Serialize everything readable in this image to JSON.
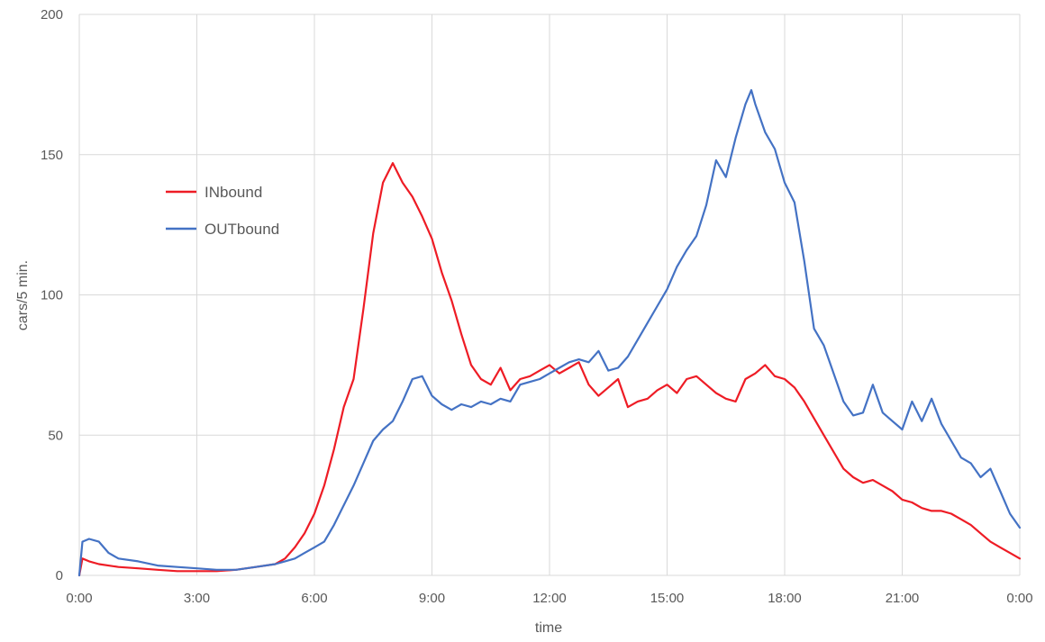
{
  "chart_data": {
    "type": "line",
    "title": "",
    "xlabel": "time",
    "ylabel": "cars/5 min.",
    "xlim": [
      0,
      24
    ],
    "ylim": [
      0,
      200
    ],
    "x_ticks": [
      0,
      3,
      6,
      9,
      12,
      15,
      18,
      21,
      24
    ],
    "x_tick_labels": [
      "0:00",
      "3:00",
      "6:00",
      "9:00",
      "12:00",
      "15:00",
      "18:00",
      "21:00",
      "0:00"
    ],
    "y_ticks": [
      0,
      50,
      100,
      150,
      200
    ],
    "y_tick_labels": [
      "0",
      "50",
      "100",
      "150",
      "200"
    ],
    "grid": true,
    "legend_position": "upper-left",
    "series": [
      {
        "name": "INbound",
        "color": "#ee1c25",
        "points": [
          [
            0.0,
            0
          ],
          [
            0.08,
            6
          ],
          [
            0.25,
            5
          ],
          [
            0.5,
            4
          ],
          [
            1.0,
            3
          ],
          [
            1.5,
            2.5
          ],
          [
            2.0,
            2
          ],
          [
            2.5,
            1.5
          ],
          [
            3.0,
            1.5
          ],
          [
            3.5,
            1.5
          ],
          [
            4.0,
            2
          ],
          [
            4.5,
            3
          ],
          [
            5.0,
            4
          ],
          [
            5.25,
            6
          ],
          [
            5.5,
            10
          ],
          [
            5.75,
            15
          ],
          [
            6.0,
            22
          ],
          [
            6.25,
            32
          ],
          [
            6.5,
            45
          ],
          [
            6.75,
            60
          ],
          [
            7.0,
            70
          ],
          [
            7.25,
            95
          ],
          [
            7.5,
            122
          ],
          [
            7.75,
            140
          ],
          [
            8.0,
            147
          ],
          [
            8.25,
            140
          ],
          [
            8.5,
            135
          ],
          [
            8.75,
            128
          ],
          [
            9.0,
            120
          ],
          [
            9.25,
            108
          ],
          [
            9.5,
            98
          ],
          [
            9.75,
            86
          ],
          [
            10.0,
            75
          ],
          [
            10.25,
            70
          ],
          [
            10.5,
            68
          ],
          [
            10.75,
            74
          ],
          [
            11.0,
            66
          ],
          [
            11.25,
            70
          ],
          [
            11.5,
            71
          ],
          [
            11.75,
            73
          ],
          [
            12.0,
            75
          ],
          [
            12.25,
            72
          ],
          [
            12.5,
            74
          ],
          [
            12.75,
            76
          ],
          [
            13.0,
            68
          ],
          [
            13.25,
            64
          ],
          [
            13.5,
            67
          ],
          [
            13.75,
            70
          ],
          [
            14.0,
            60
          ],
          [
            14.25,
            62
          ],
          [
            14.5,
            63
          ],
          [
            14.75,
            66
          ],
          [
            15.0,
            68
          ],
          [
            15.25,
            65
          ],
          [
            15.5,
            70
          ],
          [
            15.75,
            71
          ],
          [
            16.0,
            68
          ],
          [
            16.25,
            65
          ],
          [
            16.5,
            63
          ],
          [
            16.75,
            62
          ],
          [
            17.0,
            70
          ],
          [
            17.25,
            72
          ],
          [
            17.5,
            75
          ],
          [
            17.75,
            71
          ],
          [
            18.0,
            70
          ],
          [
            18.25,
            67
          ],
          [
            18.5,
            62
          ],
          [
            18.75,
            56
          ],
          [
            19.0,
            50
          ],
          [
            19.25,
            44
          ],
          [
            19.5,
            38
          ],
          [
            19.75,
            35
          ],
          [
            20.0,
            33
          ],
          [
            20.25,
            34
          ],
          [
            20.5,
            32
          ],
          [
            20.75,
            30
          ],
          [
            21.0,
            27
          ],
          [
            21.25,
            26
          ],
          [
            21.5,
            24
          ],
          [
            21.75,
            23
          ],
          [
            22.0,
            23
          ],
          [
            22.25,
            22
          ],
          [
            22.5,
            20
          ],
          [
            22.75,
            18
          ],
          [
            23.0,
            15
          ],
          [
            23.25,
            12
          ],
          [
            23.5,
            10
          ],
          [
            23.75,
            8
          ],
          [
            24.0,
            6
          ]
        ]
      },
      {
        "name": "OUTbound",
        "color": "#4472c4",
        "points": [
          [
            0.0,
            0
          ],
          [
            0.08,
            12
          ],
          [
            0.25,
            13
          ],
          [
            0.5,
            12
          ],
          [
            0.75,
            8
          ],
          [
            1.0,
            6
          ],
          [
            1.5,
            5
          ],
          [
            2.0,
            3.5
          ],
          [
            2.5,
            3
          ],
          [
            3.0,
            2.5
          ],
          [
            3.5,
            2
          ],
          [
            4.0,
            2
          ],
          [
            4.5,
            3
          ],
          [
            5.0,
            4
          ],
          [
            5.25,
            5
          ],
          [
            5.5,
            6
          ],
          [
            5.75,
            8
          ],
          [
            6.0,
            10
          ],
          [
            6.25,
            12
          ],
          [
            6.5,
            18
          ],
          [
            6.75,
            25
          ],
          [
            7.0,
            32
          ],
          [
            7.25,
            40
          ],
          [
            7.5,
            48
          ],
          [
            7.75,
            52
          ],
          [
            8.0,
            55
          ],
          [
            8.25,
            62
          ],
          [
            8.5,
            70
          ],
          [
            8.75,
            71
          ],
          [
            9.0,
            64
          ],
          [
            9.25,
            61
          ],
          [
            9.5,
            59
          ],
          [
            9.75,
            61
          ],
          [
            10.0,
            60
          ],
          [
            10.25,
            62
          ],
          [
            10.5,
            61
          ],
          [
            10.75,
            63
          ],
          [
            11.0,
            62
          ],
          [
            11.25,
            68
          ],
          [
            11.5,
            69
          ],
          [
            11.75,
            70
          ],
          [
            12.0,
            72
          ],
          [
            12.25,
            74
          ],
          [
            12.5,
            76
          ],
          [
            12.75,
            77
          ],
          [
            13.0,
            76
          ],
          [
            13.25,
            80
          ],
          [
            13.5,
            73
          ],
          [
            13.75,
            74
          ],
          [
            14.0,
            78
          ],
          [
            14.25,
            84
          ],
          [
            14.5,
            90
          ],
          [
            14.75,
            96
          ],
          [
            15.0,
            102
          ],
          [
            15.25,
            110
          ],
          [
            15.5,
            116
          ],
          [
            15.75,
            121
          ],
          [
            16.0,
            132
          ],
          [
            16.25,
            148
          ],
          [
            16.5,
            142
          ],
          [
            16.75,
            156
          ],
          [
            17.0,
            168
          ],
          [
            17.15,
            173
          ],
          [
            17.25,
            168
          ],
          [
            17.5,
            158
          ],
          [
            17.75,
            152
          ],
          [
            18.0,
            140
          ],
          [
            18.25,
            133
          ],
          [
            18.5,
            112
          ],
          [
            18.75,
            88
          ],
          [
            19.0,
            82
          ],
          [
            19.25,
            72
          ],
          [
            19.5,
            62
          ],
          [
            19.75,
            57
          ],
          [
            20.0,
            58
          ],
          [
            20.25,
            68
          ],
          [
            20.5,
            58
          ],
          [
            20.75,
            55
          ],
          [
            21.0,
            52
          ],
          [
            21.25,
            62
          ],
          [
            21.5,
            55
          ],
          [
            21.75,
            63
          ],
          [
            22.0,
            54
          ],
          [
            22.25,
            48
          ],
          [
            22.5,
            42
          ],
          [
            22.75,
            40
          ],
          [
            23.0,
            35
          ],
          [
            23.25,
            38
          ],
          [
            23.5,
            30
          ],
          [
            23.75,
            22
          ],
          [
            24.0,
            17
          ]
        ]
      }
    ]
  }
}
